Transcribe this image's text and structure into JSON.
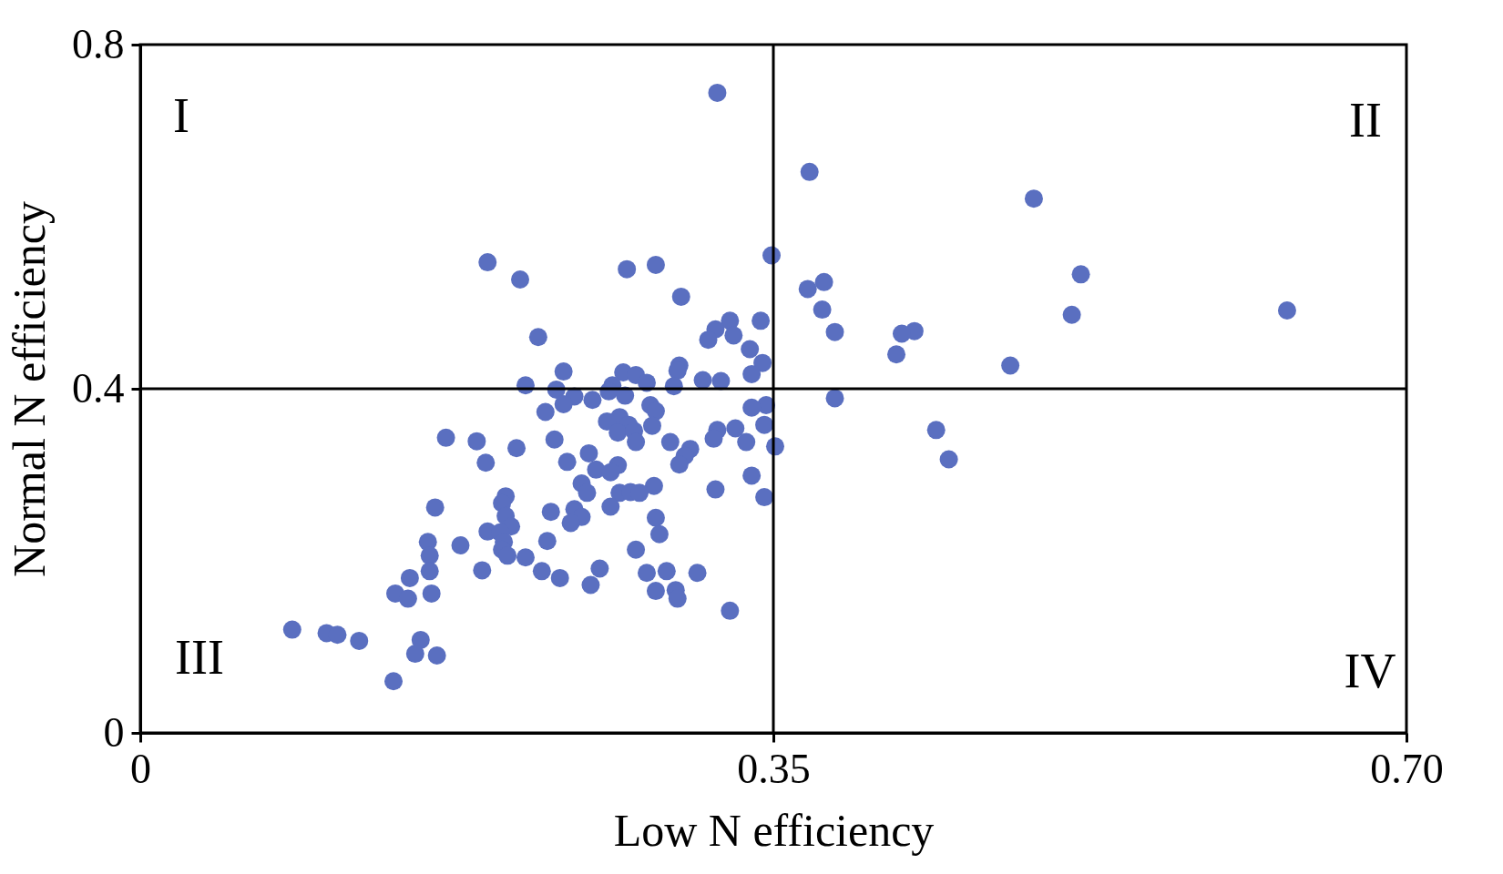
{
  "chart_data": {
    "type": "scatter",
    "xlabel": "Low N efficiency",
    "ylabel": "Normal N efficiency",
    "xlim": [
      0,
      0.7
    ],
    "xticks": [
      0,
      0.35,
      {
        "value": 0.7,
        "label": "0.70"
      }
    ],
    "ylim": [
      0,
      0.8
    ],
    "yticks": [
      0,
      0.4,
      0.8
    ],
    "grid": false,
    "marker": "circle",
    "ref_lines": [
      {
        "axis": "x",
        "value": 0.35,
        "color": "#000000"
      },
      {
        "axis": "y",
        "value": 0.4,
        "color": "#000000"
      }
    ],
    "annotations": [
      "I",
      "II",
      "III",
      "IV"
    ],
    "series": [
      {
        "color": "#5a6fc0",
        "x": [
          0.319,
          0.37,
          0.494,
          0.349,
          0.192,
          0.269,
          0.285,
          0.21,
          0.52,
          0.378,
          0.369,
          0.299,
          0.634,
          0.377,
          0.515,
          0.343,
          0.326,
          0.318,
          0.384,
          0.428,
          0.421,
          0.22,
          0.328,
          0.314,
          0.337,
          0.418,
          0.344,
          0.481,
          0.298,
          0.297,
          0.234,
          0.267,
          0.274,
          0.338,
          0.28,
          0.213,
          0.261,
          0.295,
          0.311,
          0.321,
          0.23,
          0.259,
          0.268,
          0.24,
          0.25,
          0.234,
          0.384,
          0.346,
          0.338,
          0.282,
          0.285,
          0.224,
          0.265,
          0.258,
          0.27,
          0.283,
          0.345,
          0.329,
          0.319,
          0.264,
          0.273,
          0.44,
          0.169,
          0.229,
          0.317,
          0.186,
          0.274,
          0.293,
          0.335,
          0.351,
          0.208,
          0.304,
          0.248,
          0.301,
          0.447,
          0.191,
          0.236,
          0.298,
          0.264,
          0.252,
          0.26,
          0.338,
          0.244,
          0.284,
          0.318,
          0.247,
          0.265,
          0.271,
          0.276,
          0.202,
          0.345,
          0.2,
          0.26,
          0.163,
          0.227,
          0.24,
          0.244,
          0.202,
          0.285,
          0.238,
          0.205,
          0.192,
          0.199,
          0.287,
          0.201,
          0.225,
          0.159,
          0.177,
          0.274,
          0.2,
          0.16,
          0.203,
          0.213,
          0.16,
          0.189,
          0.222,
          0.254,
          0.28,
          0.291,
          0.308,
          0.149,
          0.232,
          0.249,
          0.285,
          0.296,
          0.141,
          0.161,
          0.148,
          0.297,
          0.326,
          0.084,
          0.103,
          0.109,
          0.121,
          0.155,
          0.152,
          0.164,
          0.14
        ],
        "values": [
          0.744,
          0.652,
          0.621,
          0.555,
          0.547,
          0.539,
          0.544,
          0.527,
          0.533,
          0.524,
          0.516,
          0.507,
          0.491,
          0.492,
          0.486,
          0.479,
          0.479,
          0.469,
          0.466,
          0.467,
          0.464,
          0.46,
          0.462,
          0.457,
          0.446,
          0.44,
          0.43,
          0.427,
          0.427,
          0.421,
          0.42,
          0.419,
          0.416,
          0.417,
          0.407,
          0.404,
          0.404,
          0.403,
          0.41,
          0.409,
          0.399,
          0.397,
          0.392,
          0.391,
          0.387,
          0.382,
          0.389,
          0.381,
          0.378,
          0.381,
          0.374,
          0.373,
          0.367,
          0.362,
          0.358,
          0.357,
          0.358,
          0.354,
          0.352,
          0.349,
          0.351,
          0.352,
          0.343,
          0.341,
          0.342,
          0.339,
          0.338,
          0.338,
          0.338,
          0.333,
          0.331,
          0.33,
          0.325,
          0.322,
          0.318,
          0.314,
          0.315,
          0.312,
          0.311,
          0.306,
          0.303,
          0.299,
          0.29,
          0.287,
          0.283,
          0.279,
          0.279,
          0.28,
          0.279,
          0.275,
          0.274,
          0.267,
          0.263,
          0.262,
          0.257,
          0.26,
          0.251,
          0.252,
          0.25,
          0.244,
          0.24,
          0.234,
          0.233,
          0.231,
          0.222,
          0.223,
          0.222,
          0.218,
          0.213,
          0.213,
          0.206,
          0.206,
          0.204,
          0.188,
          0.189,
          0.188,
          0.191,
          0.186,
          0.188,
          0.186,
          0.18,
          0.18,
          0.172,
          0.165,
          0.166,
          0.162,
          0.162,
          0.156,
          0.156,
          0.142,
          0.12,
          0.116,
          0.114,
          0.107,
          0.108,
          0.092,
          0.09,
          0.06
        ]
      }
    ]
  }
}
